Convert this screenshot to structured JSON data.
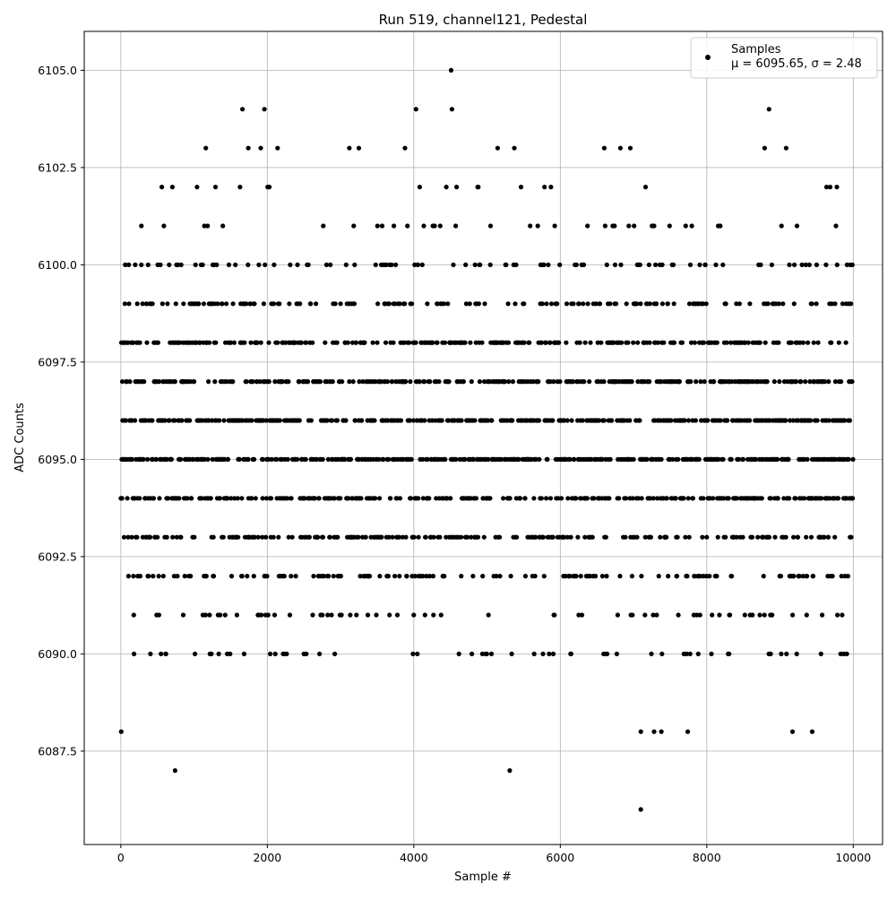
{
  "chart_data": {
    "type": "scatter",
    "title": "Run 519, channel121, Pedestal",
    "xlabel": "Sample #",
    "ylabel": "ADC Counts",
    "xlim": [
      -500,
      10400
    ],
    "ylim": [
      6085.1,
      6106.0
    ],
    "x_ticks": [
      0,
      2000,
      4000,
      6000,
      8000,
      10000
    ],
    "x_tick_labels": [
      "0",
      "2000",
      "4000",
      "6000",
      "8000",
      "10000"
    ],
    "y_ticks": [
      6087.5,
      6090.0,
      6092.5,
      6095.0,
      6097.5,
      6100.0,
      6102.5,
      6105.0
    ],
    "y_tick_labels": [
      "6087.5",
      "6090.0",
      "6092.5",
      "6095.0",
      "6097.5",
      "6100.0",
      "6102.5",
      "6105.0"
    ],
    "grid": true,
    "legend_position": "top-right",
    "series": [
      {
        "name": "Samples",
        "label_line2": "μ = 6095.65, σ = 2.48",
        "color": "#000000",
        "marker": "circle",
        "n_samples": 10000,
        "mean": 6095.65,
        "sigma": 2.48,
        "outliers": [
          {
            "x": 5,
            "y": 6088
          },
          {
            "x": 60,
            "y": 6100
          },
          {
            "x": 280,
            "y": 6101
          },
          {
            "x": 740,
            "y": 6087
          },
          {
            "x": 1660,
            "y": 6104
          },
          {
            "x": 1960,
            "y": 6104
          },
          {
            "x": 1160,
            "y": 6103
          },
          {
            "x": 1740,
            "y": 6103
          },
          {
            "x": 1910,
            "y": 6103
          },
          {
            "x": 2140,
            "y": 6103
          },
          {
            "x": 3880,
            "y": 6103
          },
          {
            "x": 3120,
            "y": 6103
          },
          {
            "x": 3250,
            "y": 6103
          },
          {
            "x": 4030,
            "y": 6104
          },
          {
            "x": 4520,
            "y": 6104
          },
          {
            "x": 4510,
            "y": 6105
          },
          {
            "x": 5310,
            "y": 6087
          },
          {
            "x": 6600,
            "y": 6103
          },
          {
            "x": 7100,
            "y": 6086
          },
          {
            "x": 7100,
            "y": 6088
          },
          {
            "x": 7280,
            "y": 6088
          },
          {
            "x": 7380,
            "y": 6088
          },
          {
            "x": 7740,
            "y": 6088
          },
          {
            "x": 8790,
            "y": 6103
          },
          {
            "x": 8850,
            "y": 6104
          },
          {
            "x": 9170,
            "y": 6088
          },
          {
            "x": 9440,
            "y": 6088
          }
        ]
      }
    ]
  }
}
